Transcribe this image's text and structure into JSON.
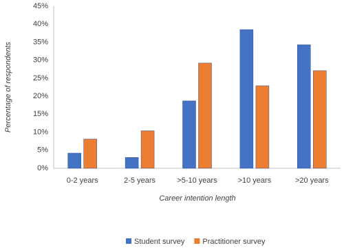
{
  "chart_data": {
    "type": "bar",
    "categories": [
      "0-2 years",
      "2-5 years",
      ">5-10 years",
      ">10 years",
      ">20 years"
    ],
    "series": [
      {
        "name": "Student survey",
        "color": "#4472c4",
        "values": [
          4.2,
          3.0,
          18.7,
          38.5,
          34.3
        ]
      },
      {
        "name": "Practitioner survey",
        "color": "#ed7d31",
        "values": [
          8.1,
          10.4,
          29.2,
          22.9,
          27.1
        ]
      }
    ],
    "y_label": "Percentage of respondents",
    "x_label": "Career intention length",
    "ylim": [
      0,
      45
    ],
    "yticks": [
      {
        "value": 0,
        "label": "0%"
      },
      {
        "value": 5,
        "label": "5%"
      },
      {
        "value": 10,
        "label": "10%"
      },
      {
        "value": 15,
        "label": "15%"
      },
      {
        "value": 20,
        "label": "20%"
      },
      {
        "value": 25,
        "label": "25%"
      },
      {
        "value": 30,
        "label": "30%"
      },
      {
        "value": 35,
        "label": "35%"
      },
      {
        "value": 40,
        "label": "40%"
      },
      {
        "value": 45,
        "label": "45%"
      }
    ],
    "grid": false,
    "legend": "bottom"
  }
}
